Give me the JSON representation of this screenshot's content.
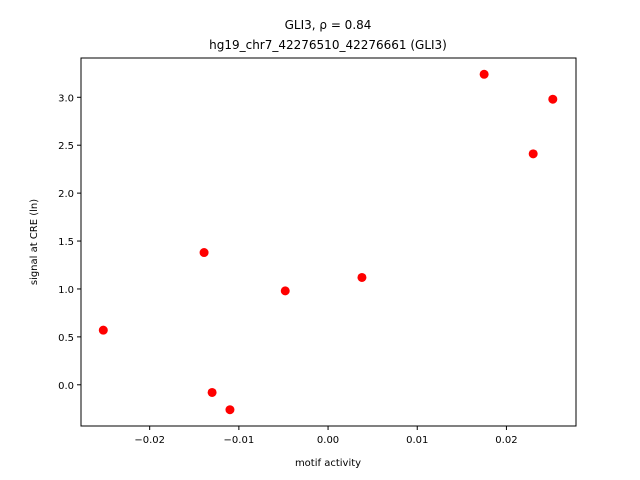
{
  "chart_data": {
    "type": "scatter",
    "title": "GLI3, ρ = 0.84",
    "subtitle": "hg19_chr7_42276510_42276661 (GLI3)",
    "x_label": "motif activity",
    "y_label": "signal at CRE (ln)",
    "color": "#ff0000",
    "x": [
      -0.0252,
      -0.0139,
      -0.013,
      -0.011,
      -0.0048,
      0.0038,
      0.0175,
      0.023,
      0.0252
    ],
    "values": [
      0.57,
      1.38,
      -0.08,
      -0.26,
      0.98,
      1.12,
      3.24,
      2.41,
      2.98
    ],
    "xlim": [
      -0.0277,
      0.0278
    ],
    "ylim": [
      -0.43,
      3.41
    ],
    "xticks": [
      {
        "value": -0.02,
        "label": "−0.02"
      },
      {
        "value": -0.01,
        "label": "−0.01"
      },
      {
        "value": 0,
        "label": "0.00"
      },
      {
        "value": 0.01,
        "label": "0.01"
      },
      {
        "value": 0.02,
        "label": "0.02"
      }
    ],
    "yticks": [
      {
        "value": 0,
        "label": "0.0"
      },
      0.5,
      {
        "value": 1,
        "label": "1.0"
      },
      1.5,
      {
        "value": 2,
        "label": "2.0"
      },
      2.5,
      {
        "value": 3,
        "label": "3.0"
      }
    ]
  }
}
